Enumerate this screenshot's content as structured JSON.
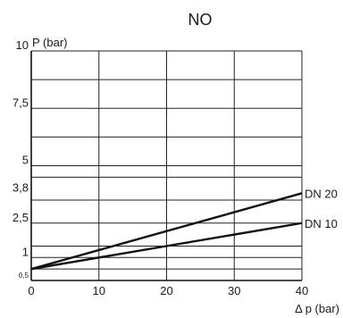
{
  "chart_data": {
    "type": "line",
    "title": "NO",
    "ylabel": "P (bar)",
    "xlabel": "Δ p (bar)",
    "xlim": [
      0,
      40
    ],
    "ylim": [
      0,
      10
    ],
    "x_ticks": [
      {
        "value": 0,
        "label": "0"
      },
      {
        "value": 10,
        "label": "10"
      },
      {
        "value": 20,
        "label": "20"
      },
      {
        "value": 30,
        "label": "30"
      },
      {
        "value": 40,
        "label": "40"
      }
    ],
    "y_ticks": [
      {
        "value": 0,
        "label": ""
      },
      {
        "value": 0.5,
        "label": "0,5"
      },
      {
        "value": 1,
        "label": "1"
      },
      {
        "value": 2.5,
        "label": "2,5"
      },
      {
        "value": 3.8,
        "label": "3,8"
      },
      {
        "value": 5,
        "label": "5"
      },
      {
        "value": 7.5,
        "label": "7,5"
      },
      {
        "value": 10,
        "label": "10"
      }
    ],
    "y_grid": [
      0,
      0.5,
      1,
      1.5,
      2.5,
      3.5,
      4.5,
      5,
      6.25,
      7.5,
      8.75,
      10
    ],
    "x_grid": [
      0,
      10,
      20,
      30,
      40
    ],
    "grid": true,
    "series": [
      {
        "name": "DN 20",
        "x": [
          0,
          40
        ],
        "y": [
          0.5,
          3.8
        ]
      },
      {
        "name": "DN 10",
        "x": [
          0,
          40
        ],
        "y": [
          0.5,
          2.5
        ]
      }
    ]
  }
}
